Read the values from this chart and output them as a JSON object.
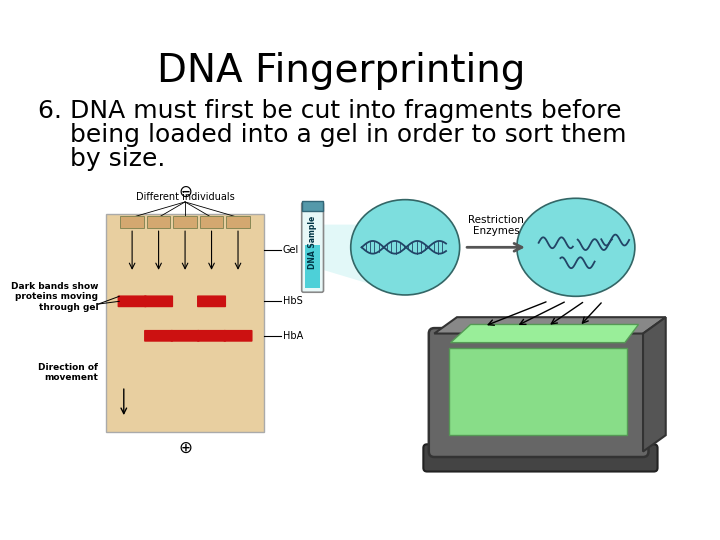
{
  "title": "DNA Fingerprinting",
  "title_fontsize": 28,
  "body_text_line1": "6. DNA must first be cut into fragments before",
  "body_text_line2": "    being loaded into a gel in order to sort them",
  "body_text_line3": "    by size.",
  "body_fontsize": 18,
  "background_color": "#ffffff",
  "gel_bg_color": "#e8cfa0",
  "gel_band_color": "#cc1111",
  "text_color": "#000000",
  "ellipse_color": "#7ddede",
  "tube_fill": "#4dd0d8",
  "machine_body": "#606060",
  "machine_tray": "#88ee88"
}
